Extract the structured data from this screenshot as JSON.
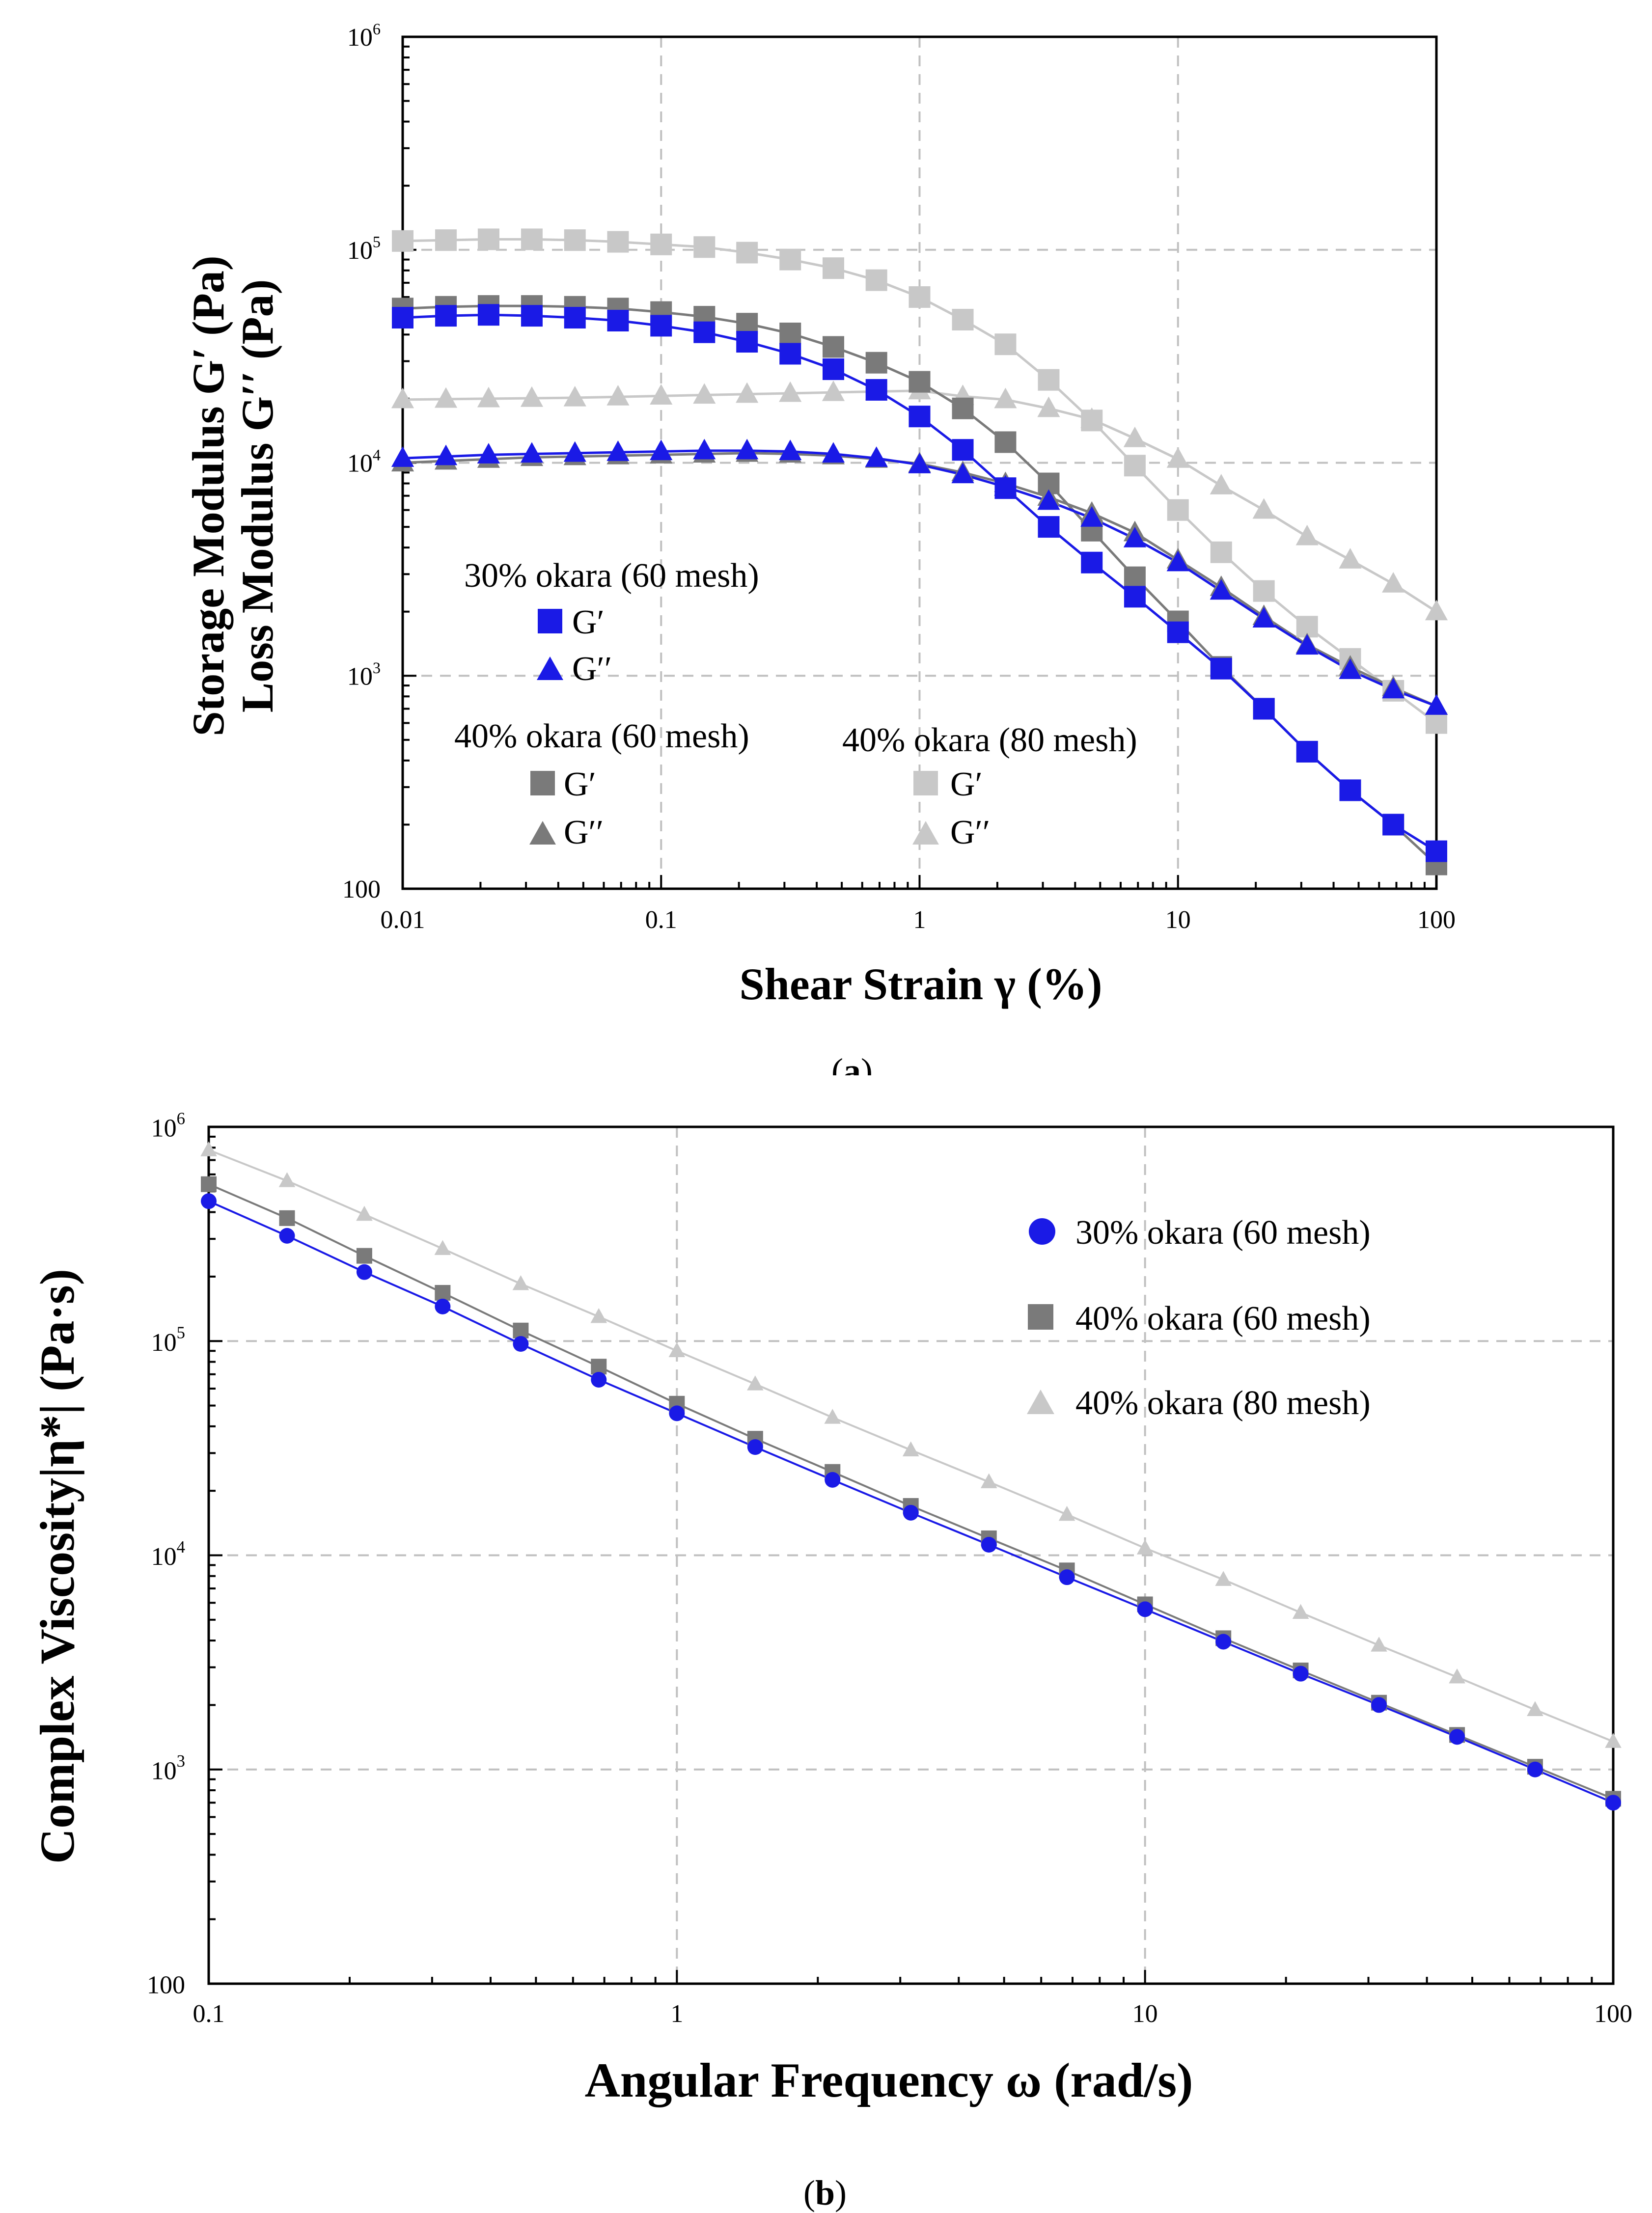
{
  "colors": {
    "blue": "#1a1ae6",
    "dark_gray": "#7a7a7a",
    "light_gray": "#c8c8c8",
    "grid": "#c0c0c0"
  },
  "chart_data": [
    {
      "id": "a",
      "type": "scatter",
      "caption": "(a)",
      "caption_letter": "a",
      "xlabel": "Shear Strain γ (%)",
      "ylabel_line1": "Storage Modulus G′ (Pa)",
      "ylabel_line2": "Loss Modulus G′′ (Pa)",
      "x_scale": "log",
      "y_scale": "log",
      "xlim": [
        0.01,
        100
      ],
      "ylim": [
        100,
        1000000
      ],
      "x_ticks": [
        {
          "v": 0.01,
          "label": "0.01"
        },
        {
          "v": 0.1,
          "label": "0.1"
        },
        {
          "v": 1,
          "label": "1"
        },
        {
          "v": 10,
          "label": "10"
        },
        {
          "v": 100,
          "label": "100"
        }
      ],
      "y_ticks": [
        {
          "v": 100,
          "base": "100",
          "exp": ""
        },
        {
          "v": 1000,
          "base": "10",
          "exp": "3"
        },
        {
          "v": 10000,
          "base": "10",
          "exp": "4"
        },
        {
          "v": 100000,
          "base": "10",
          "exp": "5"
        },
        {
          "v": 1000000,
          "base": "10",
          "exp": "6"
        }
      ],
      "grid": true,
      "legend_groups": [
        {
          "title": "30% okara (60 mesh)",
          "entries": [
            {
              "marker": "square",
              "color": "#1a1ae6",
              "label": "G′"
            },
            {
              "marker": "triangle",
              "color": "#1a1ae6",
              "label": "G′′"
            }
          ]
        },
        {
          "title": "40% okara (60 mesh)",
          "entries": [
            {
              "marker": "square",
              "color": "#7a7a7a",
              "label": "G′"
            },
            {
              "marker": "triangle",
              "color": "#7a7a7a",
              "label": "G′′"
            }
          ]
        },
        {
          "title": "40% okara (80 mesh)",
          "entries": [
            {
              "marker": "square",
              "color": "#c8c8c8",
              "label": "G′"
            },
            {
              "marker": "triangle",
              "color": "#c8c8c8",
              "label": "G′′"
            }
          ]
        }
      ],
      "x": [
        0.01,
        0.0147,
        0.0215,
        0.0316,
        0.0464,
        0.0681,
        0.1,
        0.147,
        0.215,
        0.316,
        0.464,
        0.681,
        1,
        1.47,
        2.15,
        3.16,
        4.64,
        6.81,
        10,
        14.7,
        21.5,
        31.6,
        46.4,
        68.1,
        100
      ],
      "series": [
        {
          "name": "40% okara (80 mesh) G′′",
          "marker": "triangle",
          "color": "#c8c8c8",
          "values": [
            19800,
            19900,
            20000,
            20100,
            20200,
            20400,
            20600,
            20800,
            21000,
            21200,
            21400,
            21600,
            21800,
            20500,
            19800,
            18000,
            16000,
            13000,
            10400,
            7800,
            6000,
            4500,
            3500,
            2700,
            2000
          ]
        },
        {
          "name": "40% okara (80 mesh) G′",
          "marker": "square",
          "color": "#c8c8c8",
          "values": [
            110000,
            111000,
            112000,
            112000,
            111000,
            109000,
            106000,
            103000,
            97000,
            90000,
            82000,
            72000,
            60000,
            47000,
            36000,
            24500,
            15800,
            9700,
            6000,
            3800,
            2500,
            1700,
            1200,
            850,
            600
          ]
        },
        {
          "name": "40% okara (60 mesh) G′′",
          "marker": "triangle",
          "color": "#7a7a7a",
          "values": [
            10000,
            10200,
            10400,
            10600,
            10700,
            10800,
            10900,
            11000,
            11100,
            11000,
            10800,
            10400,
            9900,
            9000,
            8000,
            6900,
            5800,
            4700,
            3500,
            2600,
            1900,
            1400,
            1100,
            880,
            720
          ]
        },
        {
          "name": "40% okara (60 mesh) G′",
          "marker": "square",
          "color": "#7a7a7a",
          "values": [
            53000,
            54000,
            54500,
            54500,
            54000,
            53000,
            51000,
            48500,
            45000,
            40500,
            35000,
            29500,
            24000,
            18000,
            12500,
            8000,
            4800,
            2900,
            1800,
            1100,
            700,
            440,
            290,
            200,
            130
          ]
        },
        {
          "name": "30% okara (60 mesh) G′′",
          "marker": "triangle",
          "color": "#1a1ae6",
          "values": [
            10500,
            10700,
            10900,
            11000,
            11100,
            11200,
            11300,
            11400,
            11400,
            11300,
            11000,
            10500,
            9800,
            8800,
            7700,
            6600,
            5500,
            4400,
            3400,
            2500,
            1850,
            1380,
            1060,
            860,
            720
          ]
        },
        {
          "name": "30% okara (60 mesh) G′",
          "marker": "square",
          "color": "#1a1ae6",
          "values": [
            48000,
            49000,
            49500,
            49000,
            48000,
            46500,
            44000,
            41000,
            37000,
            32500,
            27500,
            22000,
            16500,
            11500,
            7600,
            5000,
            3400,
            2350,
            1600,
            1080,
            700,
            440,
            290,
            200,
            150
          ]
        }
      ]
    },
    {
      "id": "b",
      "type": "scatter",
      "caption": "(b)",
      "caption_letter": "b",
      "xlabel": "Angular Frequency ω (rad/s)",
      "ylabel": "Complex Viscosity|η*|  (Pa·s)",
      "x_scale": "log",
      "y_scale": "log",
      "xlim": [
        0.1,
        100
      ],
      "ylim": [
        100,
        1000000
      ],
      "x_ticks": [
        {
          "v": 0.1,
          "label": "0.1"
        },
        {
          "v": 1,
          "label": "1"
        },
        {
          "v": 10,
          "label": "10"
        },
        {
          "v": 100,
          "label": "100"
        }
      ],
      "y_ticks": [
        {
          "v": 100,
          "base": "100",
          "exp": ""
        },
        {
          "v": 1000,
          "base": "10",
          "exp": "3"
        },
        {
          "v": 10000,
          "base": "10",
          "exp": "4"
        },
        {
          "v": 100000,
          "base": "10",
          "exp": "5"
        },
        {
          "v": 1000000,
          "base": "10",
          "exp": "6"
        }
      ],
      "grid": true,
      "legend": [
        {
          "marker": "circle",
          "color": "#1a1ae6",
          "label": "30% okara (60 mesh)"
        },
        {
          "marker": "square",
          "color": "#7a7a7a",
          "label": "40% okara (60 mesh)"
        },
        {
          "marker": "triangle",
          "color": "#c8c8c8",
          "label": "40% okara (80 mesh)"
        }
      ],
      "x": [
        0.1,
        0.147,
        0.215,
        0.316,
        0.464,
        0.681,
        1,
        1.47,
        2.15,
        3.16,
        4.64,
        6.81,
        10,
        14.7,
        21.5,
        31.6,
        46.4,
        68.1,
        100
      ],
      "series": [
        {
          "name": "40% okara (80 mesh)",
          "marker": "triangle",
          "color": "#c8c8c8",
          "values": [
            780000,
            560000,
            390000,
            270000,
            185000,
            130000,
            90000,
            63000,
            44000,
            31000,
            22000,
            15500,
            10800,
            7700,
            5400,
            3800,
            2700,
            1900,
            1350
          ]
        },
        {
          "name": "40% okara (60 mesh)",
          "marker": "square",
          "color": "#7a7a7a",
          "values": [
            540000,
            375000,
            250000,
            168000,
            112000,
            76000,
            51000,
            35000,
            24500,
            17000,
            12000,
            8500,
            5900,
            4100,
            2900,
            2050,
            1450,
            1030,
            730
          ]
        },
        {
          "name": "30% okara (60 mesh)",
          "marker": "circle",
          "color": "#1a1ae6",
          "values": [
            450000,
            310000,
            210000,
            145000,
            97000,
            66000,
            46000,
            32000,
            22500,
            15800,
            11200,
            7900,
            5600,
            3950,
            2800,
            2000,
            1420,
            1000,
            700
          ]
        }
      ]
    }
  ]
}
